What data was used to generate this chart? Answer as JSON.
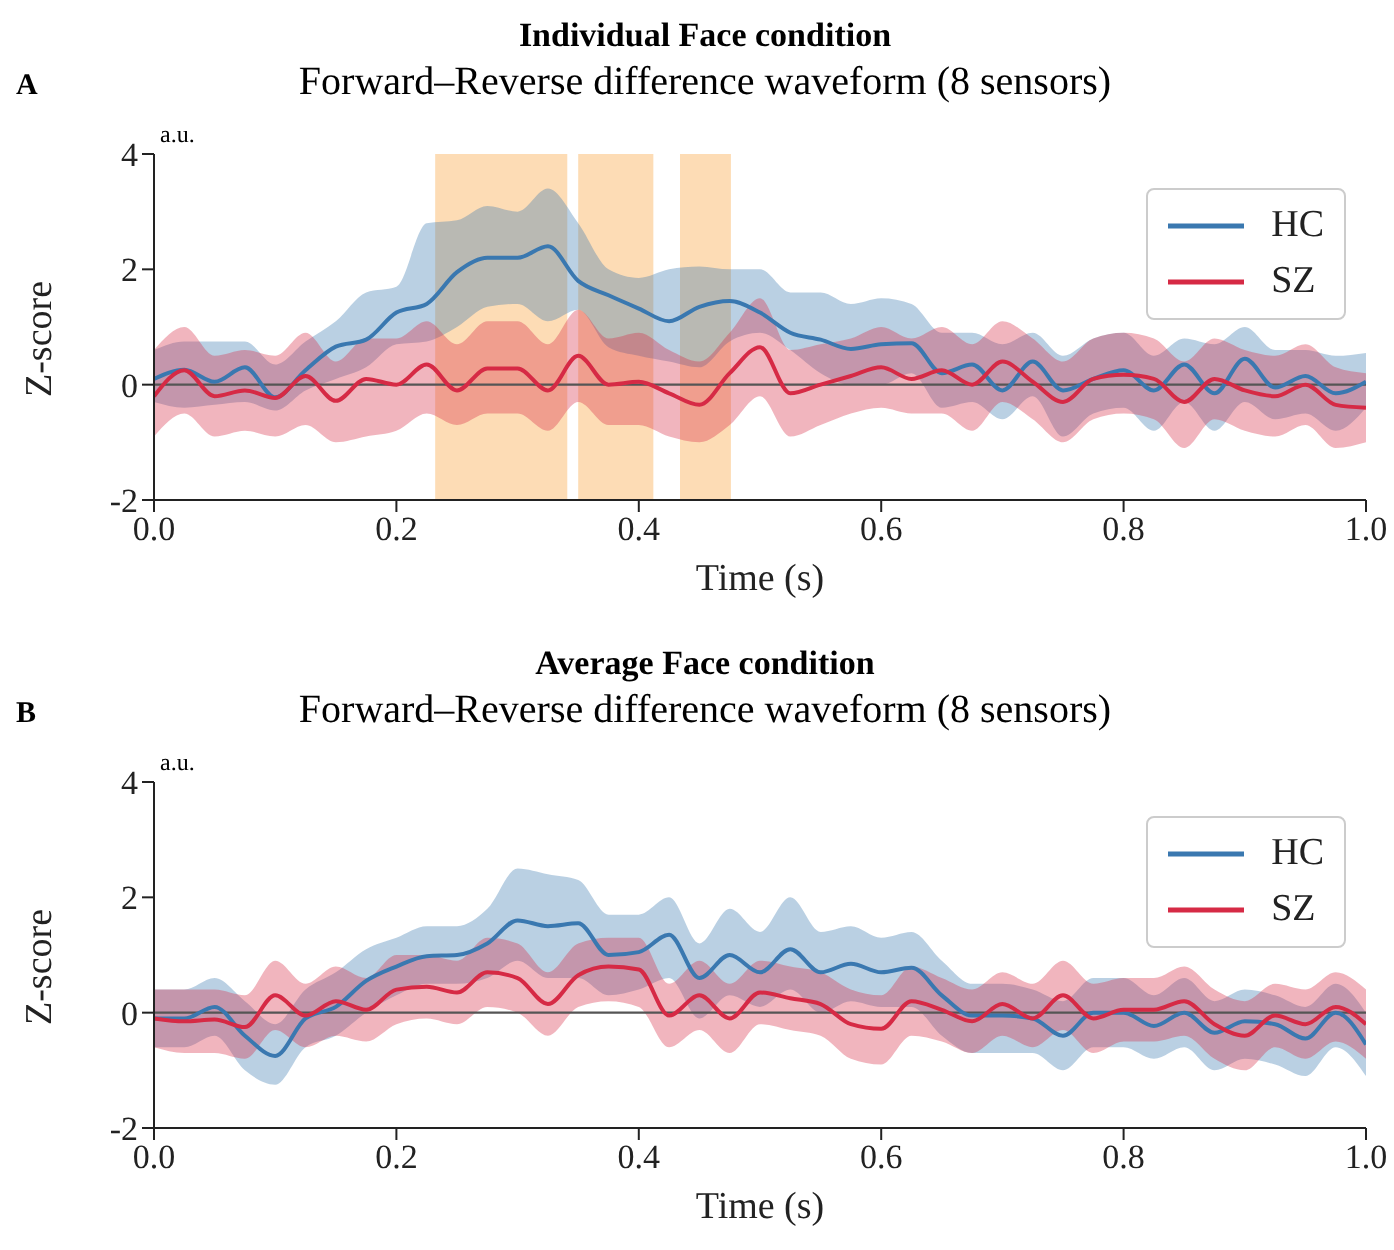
{
  "chart_data": [
    {
      "type": "line",
      "title": "Individual Face condition",
      "subtitle": "Forward–Reverse difference waveform (8 sensors)",
      "xlabel": "Time (s)",
      "ylabel": "Z-score",
      "annotations": [
        "A",
        "a.u."
      ],
      "x": [
        0,
        0.025,
        0.05,
        0.075,
        0.1,
        0.125,
        0.15,
        0.175,
        0.2,
        0.225,
        0.25,
        0.275,
        0.3,
        0.325,
        0.35,
        0.375,
        0.4,
        0.425,
        0.45,
        0.475,
        0.5,
        0.525,
        0.55,
        0.575,
        0.6,
        0.625,
        0.65,
        0.675,
        0.7,
        0.725,
        0.75,
        0.775,
        0.8,
        0.825,
        0.85,
        0.875,
        0.9,
        0.925,
        0.95,
        0.975,
        1
      ],
      "series": [
        {
          "name": "HC",
          "color": "#3a78b0",
          "values": [
            0.1,
            0.26,
            0.05,
            0.3,
            -0.22,
            0.25,
            0.66,
            0.78,
            1.25,
            1.4,
            1.95,
            2.2,
            2.2,
            2.4,
            1.8,
            1.55,
            1.32,
            1.1,
            1.35,
            1.45,
            1.25,
            0.9,
            0.78,
            0.62,
            0.7,
            0.72,
            0.2,
            0.35,
            -0.1,
            0.4,
            -0.1,
            0.1,
            0.25,
            -0.1,
            0.35,
            -0.15,
            0.45,
            -0.05,
            0.15,
            -0.15,
            0.05
          ],
          "lower": [
            -0.3,
            -0.4,
            -0.35,
            -0.3,
            -0.45,
            -0.1,
            0.1,
            0.3,
            0.7,
            0.75,
            1.0,
            1.35,
            1.4,
            1.1,
            1.3,
            0.65,
            0.5,
            0.4,
            0.3,
            0.75,
            0.9,
            0.6,
            0.2,
            0.0,
            0.0,
            0.2,
            -0.4,
            -0.3,
            -0.6,
            -0.2,
            -0.9,
            -0.5,
            -0.4,
            -0.8,
            -0.3,
            -0.8,
            -0.3,
            -0.6,
            -0.5,
            -0.8,
            -0.4
          ],
          "upper": [
            0.6,
            0.75,
            0.75,
            0.75,
            0.35,
            0.75,
            1.1,
            1.6,
            1.7,
            2.8,
            2.85,
            3.1,
            3.0,
            3.4,
            2.8,
            2.0,
            1.85,
            2.0,
            2.05,
            2.0,
            2.0,
            1.6,
            1.6,
            1.4,
            1.5,
            1.4,
            0.9,
            0.9,
            0.7,
            0.9,
            0.5,
            0.8,
            0.9,
            0.5,
            0.8,
            0.7,
            1.0,
            0.6,
            0.6,
            0.5,
            0.55
          ]
        },
        {
          "name": "SZ",
          "color": "#d62a45",
          "values": [
            -0.2,
            0.25,
            -0.2,
            -0.1,
            -0.23,
            0.15,
            -0.28,
            0.1,
            0.0,
            0.35,
            -0.1,
            0.28,
            0.28,
            -0.1,
            0.5,
            0.0,
            0.05,
            -0.15,
            -0.35,
            0.2,
            0.65,
            -0.15,
            0.0,
            0.15,
            0.3,
            0.1,
            0.25,
            0.0,
            0.4,
            0.05,
            -0.3,
            0.1,
            0.17,
            0.1,
            -0.3,
            0.1,
            -0.1,
            -0.2,
            0.0,
            -0.35,
            -0.4
          ],
          "lower": [
            -0.9,
            -0.5,
            -0.9,
            -0.8,
            -0.9,
            -0.7,
            -1.0,
            -0.9,
            -0.8,
            -0.5,
            -0.7,
            -0.5,
            -0.5,
            -0.8,
            -0.3,
            -0.7,
            -0.7,
            -0.9,
            -1.0,
            -0.7,
            -0.2,
            -0.9,
            -0.7,
            -0.5,
            -0.4,
            -0.5,
            -0.5,
            -0.8,
            -0.3,
            -0.6,
            -1.0,
            -0.6,
            -0.5,
            -0.6,
            -1.1,
            -0.6,
            -0.8,
            -0.9,
            -0.7,
            -1.1,
            -1.0
          ],
          "upper": [
            0.6,
            1.0,
            0.5,
            0.6,
            0.5,
            0.9,
            0.4,
            0.8,
            0.8,
            1.1,
            0.7,
            1.1,
            1.1,
            0.7,
            1.3,
            0.8,
            0.9,
            0.6,
            0.4,
            0.9,
            1.5,
            0.6,
            0.7,
            0.8,
            1.0,
            0.8,
            1.0,
            0.7,
            1.1,
            0.8,
            0.4,
            0.8,
            0.9,
            0.8,
            0.4,
            0.8,
            0.6,
            0.5,
            0.7,
            0.3,
            0.2
          ]
        }
      ],
      "xlim": [
        0,
        1
      ],
      "xticks": [
        {
          "value": 0,
          "label": "0.0"
        },
        {
          "value": 0.2,
          "label": "0.2"
        },
        {
          "value": 0.4,
          "label": "0.4"
        },
        {
          "value": 0.6,
          "label": "0.6"
        },
        {
          "value": 0.8,
          "label": "0.8"
        },
        {
          "value": 1,
          "label": "1.0"
        }
      ],
      "ylim": [
        -2,
        4
      ],
      "yticks": [
        -2,
        0,
        2,
        4
      ],
      "ref_lines": [
        {
          "axis": "y",
          "value": 0,
          "color": "#555555"
        }
      ],
      "bands": [
        {
          "axis": "x",
          "from": 0.232,
          "to": 0.341,
          "color": "#fddcb5"
        },
        {
          "axis": "x",
          "from": 0.35,
          "to": 0.412,
          "color": "#fddcb5"
        },
        {
          "axis": "x",
          "from": 0.434,
          "to": 0.476,
          "color": "#fddcb5"
        }
      ],
      "legend": "top right",
      "grid": false
    },
    {
      "type": "line",
      "title": "Average Face condition",
      "subtitle": "Forward–Reverse difference waveform (8 sensors)",
      "xlabel": "Time (s)",
      "ylabel": "Z-score",
      "annotations": [
        "B",
        "a.u."
      ],
      "x": [
        0,
        0.025,
        0.05,
        0.075,
        0.1,
        0.125,
        0.15,
        0.175,
        0.2,
        0.225,
        0.25,
        0.275,
        0.3,
        0.325,
        0.35,
        0.375,
        0.4,
        0.425,
        0.45,
        0.475,
        0.5,
        0.525,
        0.55,
        0.575,
        0.6,
        0.625,
        0.65,
        0.675,
        0.7,
        0.725,
        0.75,
        0.775,
        0.8,
        0.825,
        0.85,
        0.875,
        0.9,
        0.925,
        0.95,
        0.975,
        1
      ],
      "series": [
        {
          "name": "HC",
          "color": "#3a78b0",
          "values": [
            -0.1,
            -0.1,
            0.1,
            -0.4,
            -0.75,
            -0.1,
            0.1,
            0.55,
            0.8,
            0.98,
            1.0,
            1.2,
            1.6,
            1.5,
            1.55,
            1.0,
            1.05,
            1.35,
            0.6,
            1.0,
            0.7,
            1.1,
            0.7,
            0.85,
            0.7,
            0.78,
            0.3,
            -0.05,
            -0.05,
            -0.1,
            -0.4,
            0.0,
            0.0,
            -0.23,
            0.0,
            -0.35,
            -0.15,
            -0.2,
            -0.45,
            0.0,
            -0.55
          ],
          "lower": [
            -0.6,
            -0.6,
            -0.4,
            -1.0,
            -1.25,
            -0.6,
            -0.4,
            0.0,
            0.3,
            0.5,
            0.5,
            0.6,
            0.9,
            0.6,
            0.6,
            0.3,
            0.4,
            0.6,
            -0.1,
            0.3,
            0.1,
            0.4,
            0.0,
            0.2,
            0.1,
            0.1,
            -0.4,
            -0.7,
            -0.7,
            -0.7,
            -1.0,
            -0.6,
            -0.6,
            -0.8,
            -0.6,
            -1.0,
            -0.8,
            -0.9,
            -1.1,
            -0.6,
            -1.1
          ],
          "upper": [
            0.4,
            0.4,
            0.6,
            0.2,
            -0.2,
            0.4,
            0.7,
            1.1,
            1.3,
            1.5,
            1.5,
            1.8,
            2.5,
            2.4,
            2.3,
            1.7,
            1.7,
            2.0,
            1.2,
            1.8,
            1.4,
            2.0,
            1.4,
            1.5,
            1.3,
            1.4,
            0.9,
            0.5,
            0.5,
            0.4,
            0.2,
            0.6,
            0.6,
            0.3,
            0.6,
            0.2,
            0.4,
            0.3,
            0.1,
            0.5,
            0.0
          ]
        },
        {
          "name": "SZ",
          "color": "#d62a45",
          "values": [
            -0.1,
            -0.15,
            -0.12,
            -0.25,
            0.3,
            -0.05,
            0.2,
            0.05,
            0.4,
            0.45,
            0.35,
            0.7,
            0.6,
            0.15,
            0.65,
            0.8,
            0.75,
            -0.05,
            0.3,
            -0.1,
            0.35,
            0.25,
            0.15,
            -0.2,
            -0.28,
            0.2,
            0.05,
            -0.15,
            0.15,
            -0.1,
            0.3,
            -0.1,
            0.05,
            0.05,
            0.2,
            -0.2,
            -0.4,
            -0.05,
            -0.2,
            0.1,
            -0.2
          ],
          "lower": [
            -0.6,
            -0.7,
            -0.7,
            -0.8,
            -0.3,
            -0.6,
            -0.4,
            -0.5,
            -0.2,
            -0.1,
            -0.2,
            0.1,
            0.0,
            -0.4,
            0.1,
            0.2,
            0.1,
            -0.6,
            -0.3,
            -0.7,
            -0.2,
            -0.3,
            -0.4,
            -0.8,
            -0.9,
            -0.4,
            -0.5,
            -0.7,
            -0.4,
            -0.6,
            -0.3,
            -0.7,
            -0.5,
            -0.5,
            -0.4,
            -0.8,
            -1.0,
            -0.6,
            -0.8,
            -0.5,
            -0.8
          ],
          "upper": [
            0.4,
            0.4,
            0.4,
            0.3,
            0.9,
            0.5,
            0.8,
            0.6,
            1.0,
            1.0,
            0.9,
            1.3,
            1.2,
            0.7,
            1.2,
            1.3,
            1.3,
            0.5,
            0.9,
            0.5,
            0.9,
            0.8,
            0.7,
            0.4,
            0.3,
            0.8,
            0.6,
            0.4,
            0.7,
            0.5,
            0.9,
            0.5,
            0.6,
            0.6,
            0.8,
            0.4,
            0.2,
            0.5,
            0.4,
            0.7,
            0.4
          ]
        }
      ],
      "xlim": [
        0,
        1
      ],
      "xticks": [
        {
          "value": 0,
          "label": "0.0"
        },
        {
          "value": 0.2,
          "label": "0.2"
        },
        {
          "value": 0.4,
          "label": "0.4"
        },
        {
          "value": 0.6,
          "label": "0.6"
        },
        {
          "value": 0.8,
          "label": "0.8"
        },
        {
          "value": 1,
          "label": "1.0"
        }
      ],
      "ylim": [
        -2,
        4
      ],
      "yticks": [
        -2,
        0,
        2,
        4
      ],
      "ref_lines": [
        {
          "axis": "y",
          "value": 0,
          "color": "#555555"
        }
      ],
      "legend": "top right",
      "grid": false
    }
  ]
}
